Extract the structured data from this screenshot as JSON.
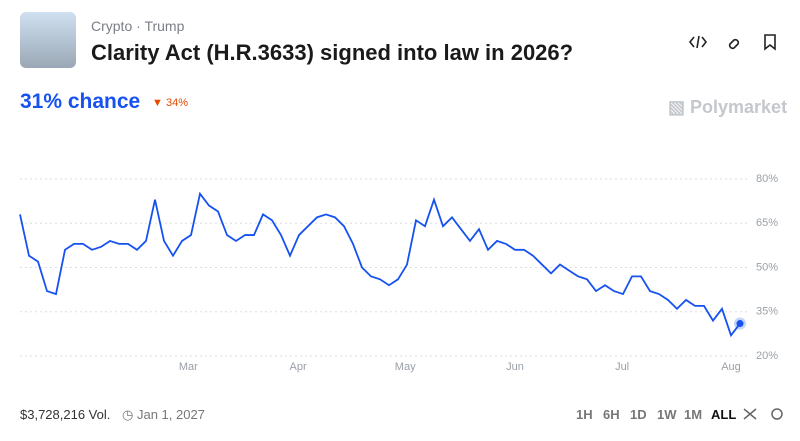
{
  "header": {
    "tags": [
      "Crypto",
      "Trump"
    ],
    "title": "Clarity Act (H.R.3633) signed into law in 2026?",
    "chance": "31% chance",
    "change": "34%",
    "brand": "Polymarket"
  },
  "footer": {
    "volume": "$3,728,216 Vol.",
    "end_date": "Jan 1, 2027",
    "ranges": [
      "1H",
      "6H",
      "1D",
      "1W",
      "1M",
      "ALL"
    ],
    "selected_range": "ALL"
  },
  "chart_data": {
    "type": "line",
    "color": "#1652f0",
    "grid": true,
    "xlim": [
      0,
      80
    ],
    "xticks": [
      {
        "value": 18.7,
        "label": "Mar"
      },
      {
        "value": 30.9,
        "label": "Apr"
      },
      {
        "value": 42.8,
        "label": "May"
      },
      {
        "value": 55,
        "label": "Jun"
      },
      {
        "value": 66.9,
        "label": "Jul"
      },
      {
        "value": 79,
        "label": "Aug"
      }
    ],
    "ylim": [
      20,
      80
    ],
    "yticks": [
      {
        "value": 80,
        "label": "80%"
      },
      {
        "value": 65,
        "label": "65%"
      },
      {
        "value": 50,
        "label": "50%"
      },
      {
        "value": 35,
        "label": "35%"
      },
      {
        "value": 20,
        "label": "20%"
      }
    ],
    "values": [
      68,
      54,
      52,
      42,
      41,
      56,
      58,
      58,
      56,
      57,
      59,
      58,
      58,
      56,
      59,
      73,
      59,
      54,
      59,
      61,
      75,
      71,
      69,
      61,
      59,
      61,
      61,
      68,
      66,
      61,
      54,
      61,
      64,
      67,
      68,
      67,
      64,
      58,
      50,
      47,
      46,
      44,
      46,
      51,
      66,
      64,
      73,
      64,
      67,
      63,
      59,
      63,
      56,
      59,
      58,
      56,
      56,
      54,
      51,
      48,
      51,
      49,
      47,
      46,
      42,
      44,
      42,
      41,
      47,
      47,
      42,
      41,
      39,
      36,
      39,
      37,
      37,
      32,
      36,
      27,
      31
    ]
  }
}
